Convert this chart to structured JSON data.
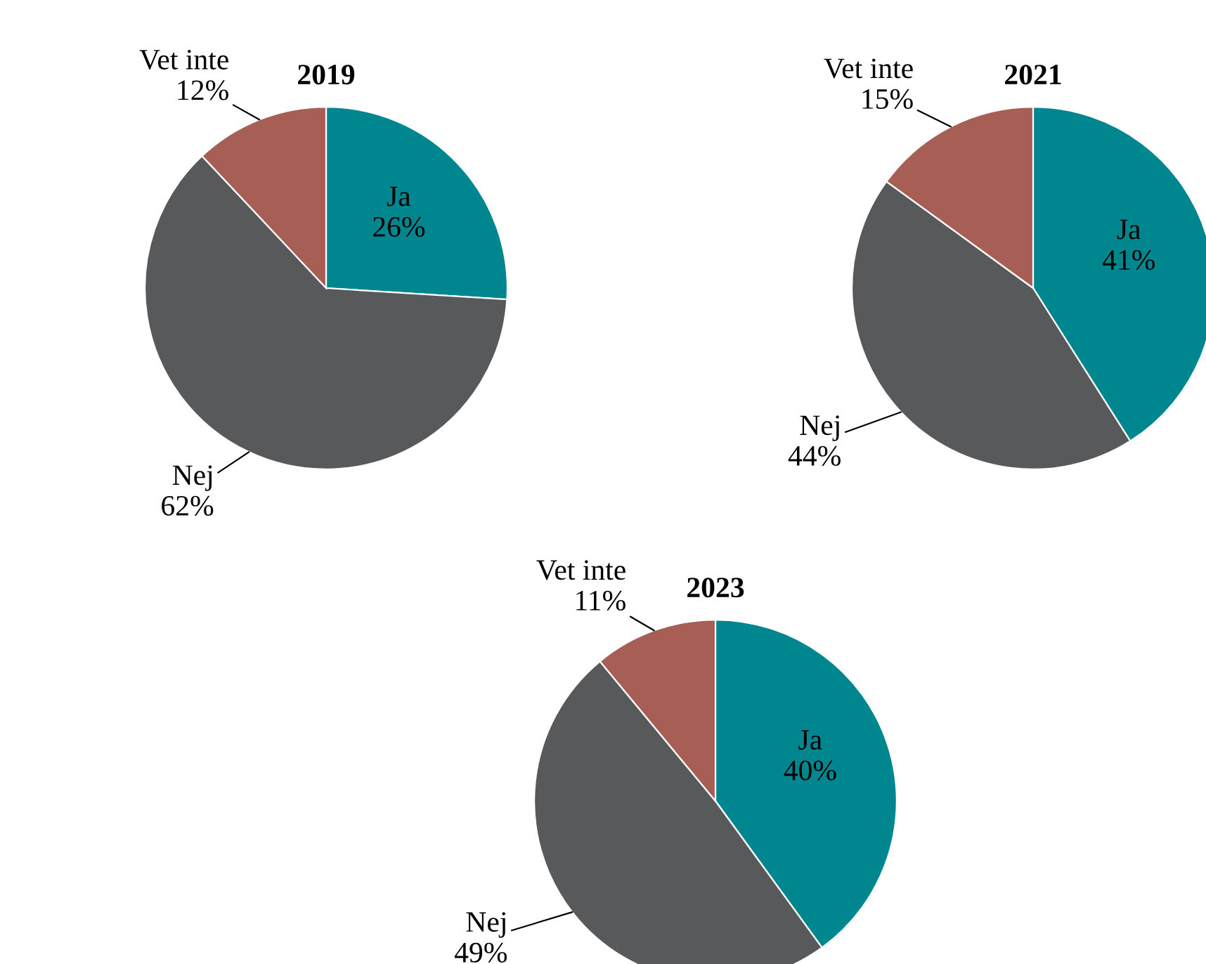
{
  "chart_data": [
    {
      "type": "pie",
      "title": "2019",
      "categories": [
        "Ja",
        "Nej",
        "Vet inte"
      ],
      "values": [
        26,
        62,
        12
      ],
      "colors": [
        "#00868f",
        "#58595b",
        "#a65e55"
      ],
      "value_labels": [
        "26%",
        "62%",
        "12%"
      ]
    },
    {
      "type": "pie",
      "title": "2021",
      "categories": [
        "Ja",
        "Nej",
        "Vet inte"
      ],
      "values": [
        41,
        44,
        15
      ],
      "colors": [
        "#00868f",
        "#58595b",
        "#a65e55"
      ],
      "value_labels": [
        "41%",
        "44%",
        "15%"
      ]
    },
    {
      "type": "pie",
      "title": "2023",
      "categories": [
        "Ja",
        "Nej",
        "Vet inte"
      ],
      "values": [
        40,
        49,
        11
      ],
      "colors": [
        "#00868f",
        "#58595b",
        "#a65e55"
      ],
      "value_labels": [
        "40%",
        "49%",
        "11%"
      ]
    }
  ]
}
